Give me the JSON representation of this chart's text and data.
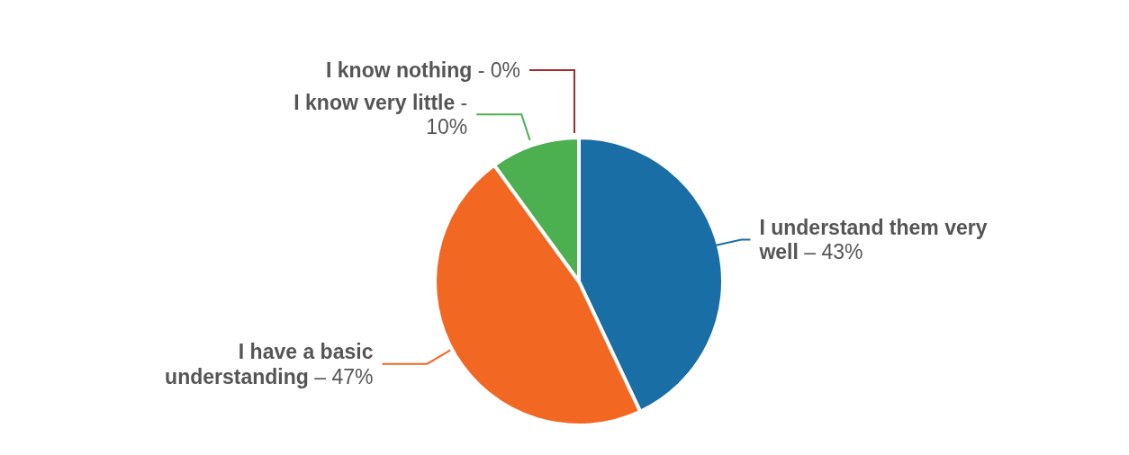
{
  "chart_data": {
    "type": "pie",
    "categories": [
      "I understand them very well –",
      "I have a basic understanding –",
      "I know very little -",
      "I know nothing -"
    ],
    "values": [
      43,
      47,
      10,
      0
    ],
    "colors": [
      "#1a6ea6",
      "#f26722",
      "#4caf50",
      "#a52a2a"
    ],
    "value_labels": [
      "43%",
      "47%",
      "10%",
      "0%"
    ]
  }
}
